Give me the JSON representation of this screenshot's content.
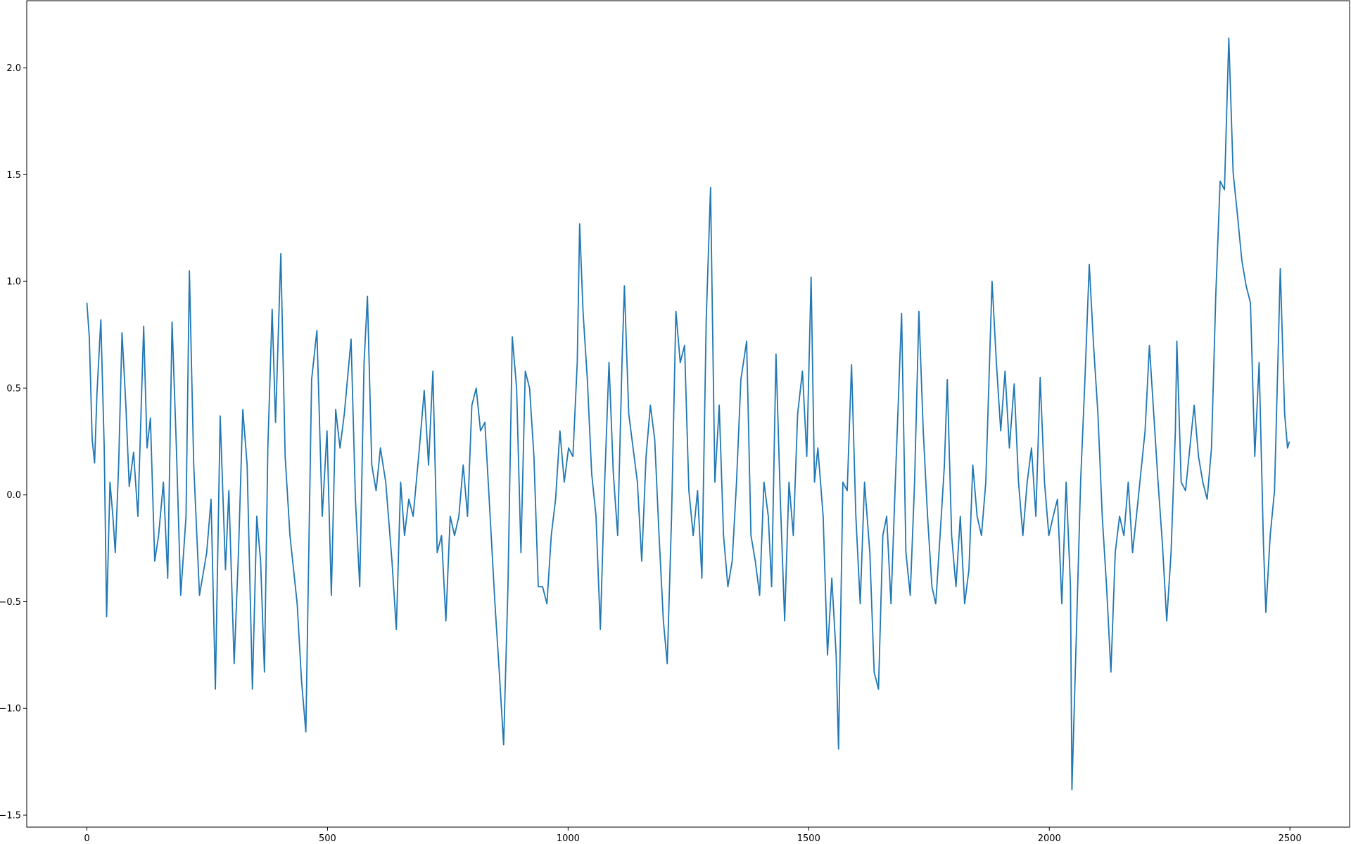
{
  "chart_data": {
    "type": "line",
    "color": "#1f77b4",
    "xlim": [
      -125,
      2624
    ],
    "ylim": [
      -1.556,
      2.315
    ],
    "xticks": [
      0,
      500,
      1000,
      1500,
      2000,
      2500
    ],
    "yticks": [
      {
        "value": -1.5,
        "label": "−1.5"
      },
      {
        "value": -1.0,
        "label": "−1.0"
      },
      {
        "value": -0.5,
        "label": "−0.5"
      },
      {
        "value": 0.0,
        "label": "0.0"
      },
      0.5,
      {
        "value": 1.0,
        "label": "1.0"
      },
      1.5,
      {
        "value": 2.0,
        "label": "2.0"
      }
    ],
    "x": [
      0,
      5,
      11,
      16,
      21,
      29,
      36,
      41,
      48,
      54,
      59,
      66,
      73,
      81,
      88,
      97,
      106,
      113,
      118,
      125,
      132,
      141,
      149,
      159,
      168,
      177,
      186,
      195,
      206,
      213,
      222,
      234,
      249,
      258,
      267,
      277,
      288,
      295,
      306,
      315,
      324,
      333,
      344,
      353,
      361,
      369,
      376,
      385,
      392,
      403,
      412,
      422,
      437,
      446,
      455,
      467,
      478,
      489,
      499,
      508,
      517,
      526,
      535,
      549,
      558,
      567,
      576,
      583,
      592,
      601,
      610,
      621,
      634,
      643,
      652,
      660,
      669,
      678,
      691,
      701,
      710,
      719,
      728,
      737,
      746,
      755,
      764,
      773,
      782,
      791,
      800,
      809,
      818,
      827,
      836,
      848,
      857,
      866,
      875,
      884,
      893,
      902,
      911,
      920,
      929,
      938,
      947,
      956,
      965,
      974,
      983,
      992,
      1001,
      1010,
      1019,
      1024,
      1031,
      1040,
      1049,
      1058,
      1067,
      1076,
      1085,
      1094,
      1103,
      1112,
      1117,
      1126,
      1135,
      1144,
      1153,
      1162,
      1171,
      1180,
      1189,
      1198,
      1206,
      1215,
      1224,
      1233,
      1242,
      1251,
      1260,
      1269,
      1278,
      1287,
      1296,
      1305,
      1314,
      1323,
      1332,
      1341,
      1350,
      1359,
      1371,
      1380,
      1389,
      1398,
      1407,
      1416,
      1423,
      1432,
      1441,
      1450,
      1459,
      1468,
      1477,
      1487,
      1496,
      1505,
      1512,
      1519,
      1530,
      1539,
      1548,
      1557,
      1562,
      1571,
      1580,
      1589,
      1598,
      1607,
      1616,
      1627,
      1636,
      1645,
      1654,
      1662,
      1671,
      1680,
      1693,
      1702,
      1711,
      1720,
      1729,
      1738,
      1747,
      1756,
      1764,
      1773,
      1782,
      1788,
      1797,
      1806,
      1815,
      1824,
      1833,
      1841,
      1850,
      1859,
      1868,
      1881,
      1890,
      1899,
      1908,
      1917,
      1927,
      1936,
      1945,
      1954,
      1963,
      1972,
      1981,
      1990,
      1999,
      2008,
      2017,
      2026,
      2035,
      2044,
      2047,
      2056,
      2065,
      2074,
      2083,
      2092,
      2101,
      2110,
      2119,
      2128,
      2137,
      2146,
      2155,
      2164,
      2173,
      2181,
      2190,
      2199,
      2208,
      2217,
      2226,
      2235,
      2244,
      2253,
      2262,
      2265,
      2274,
      2283,
      2292,
      2301,
      2310,
      2319,
      2328,
      2337,
      2346,
      2355,
      2364,
      2373,
      2382,
      2391,
      2400,
      2409,
      2418,
      2427,
      2436,
      2445,
      2450,
      2459,
      2468,
      2480,
      2489,
      2495,
      2499
    ],
    "values": [
      0.9,
      0.74,
      0.26,
      0.15,
      0.48,
      0.82,
      0.22,
      -0.57,
      0.06,
      -0.1,
      -0.27,
      0.14,
      0.76,
      0.42,
      0.04,
      0.2,
      -0.1,
      0.42,
      0.79,
      0.22,
      0.36,
      -0.31,
      -0.19,
      0.06,
      -0.39,
      0.81,
      0.22,
      -0.47,
      -0.1,
      1.05,
      0.14,
      -0.47,
      -0.27,
      -0.02,
      -0.91,
      0.37,
      -0.35,
      0.02,
      -0.79,
      -0.27,
      0.4,
      0.14,
      -0.91,
      -0.1,
      -0.31,
      -0.83,
      0.22,
      0.87,
      0.34,
      1.13,
      0.18,
      -0.19,
      -0.51,
      -0.87,
      -1.11,
      0.54,
      0.77,
      -0.1,
      0.3,
      -0.47,
      0.4,
      0.22,
      0.38,
      0.73,
      -0.02,
      -0.43,
      0.62,
      0.93,
      0.14,
      0.02,
      0.22,
      0.06,
      -0.31,
      -0.63,
      0.06,
      -0.19,
      -0.02,
      -0.1,
      0.22,
      0.49,
      0.14,
      0.58,
      -0.27,
      -0.19,
      -0.59,
      -0.1,
      -0.19,
      -0.1,
      0.14,
      -0.1,
      0.42,
      0.5,
      0.3,
      0.34,
      -0.02,
      -0.51,
      -0.83,
      -1.17,
      -0.43,
      0.74,
      0.5,
      -0.27,
      0.58,
      0.5,
      0.18,
      -0.43,
      -0.43,
      -0.51,
      -0.19,
      -0.02,
      0.3,
      0.06,
      0.22,
      0.18,
      0.62,
      1.27,
      0.86,
      0.54,
      0.1,
      -0.1,
      -0.63,
      0.06,
      0.62,
      0.1,
      -0.19,
      0.62,
      0.98,
      0.38,
      0.22,
      0.06,
      -0.31,
      0.18,
      0.42,
      0.26,
      -0.19,
      -0.59,
      -0.79,
      -0.1,
      0.86,
      0.62,
      0.7,
      0.02,
      -0.19,
      0.02,
      -0.39,
      0.82,
      1.44,
      0.06,
      0.42,
      -0.19,
      -0.43,
      -0.31,
      0.06,
      0.54,
      0.72,
      -0.19,
      -0.31,
      -0.47,
      0.06,
      -0.1,
      -0.43,
      0.66,
      -0.02,
      -0.59,
      0.06,
      -0.19,
      0.38,
      0.58,
      0.18,
      1.02,
      0.06,
      0.22,
      -0.1,
      -0.75,
      -0.39,
      -0.75,
      -1.19,
      0.06,
      0.02,
      0.61,
      -0.1,
      -0.51,
      0.06,
      -0.27,
      -0.83,
      -0.91,
      -0.19,
      -0.1,
      -0.51,
      0.06,
      0.85,
      -0.27,
      -0.47,
      0.06,
      0.86,
      0.3,
      -0.1,
      -0.43,
      -0.51,
      -0.19,
      0.14,
      0.54,
      -0.19,
      -0.43,
      -0.1,
      -0.51,
      -0.35,
      0.14,
      -0.1,
      -0.19,
      0.06,
      1.0,
      0.62,
      0.3,
      0.58,
      0.22,
      0.52,
      0.06,
      -0.19,
      0.06,
      0.22,
      -0.1,
      0.55,
      0.06,
      -0.19,
      -0.1,
      -0.02,
      -0.51,
      0.06,
      -0.43,
      -1.38,
      -0.67,
      0.06,
      0.54,
      1.08,
      0.7,
      0.38,
      -0.1,
      -0.43,
      -0.83,
      -0.27,
      -0.1,
      -0.19,
      0.06,
      -0.27,
      -0.1,
      0.1,
      0.3,
      0.7,
      0.38,
      0.06,
      -0.23,
      -0.59,
      -0.27,
      0.3,
      0.72,
      0.06,
      0.02,
      0.22,
      0.42,
      0.18,
      0.06,
      -0.02,
      0.22,
      0.94,
      1.47,
      1.43,
      2.14,
      1.51,
      1.31,
      1.1,
      0.98,
      0.9,
      0.18,
      0.62,
      -0.23,
      -0.55,
      -0.19,
      0.02,
      1.06,
      0.38,
      0.22,
      0.25
    ]
  }
}
